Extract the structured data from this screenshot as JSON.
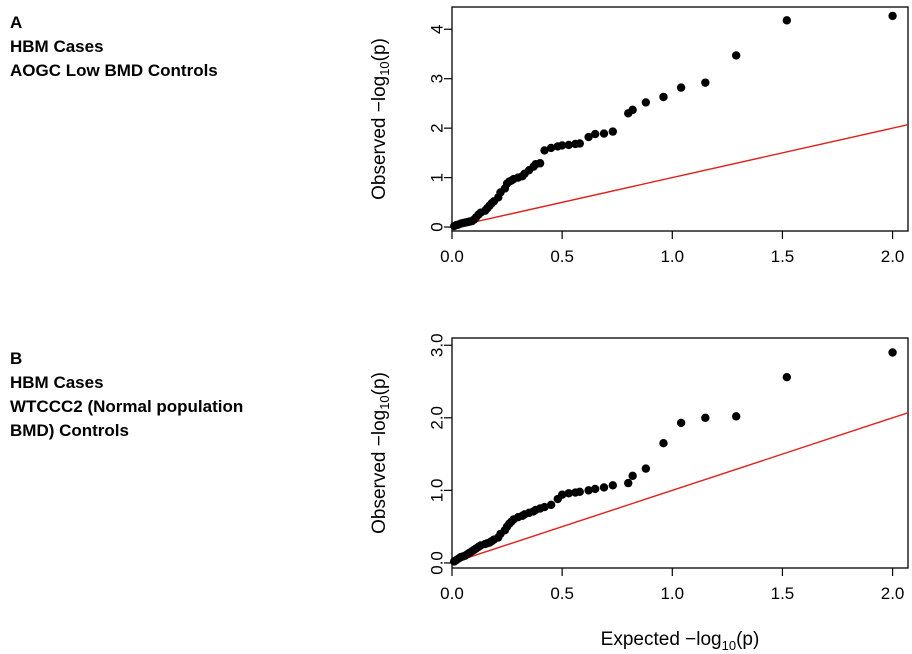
{
  "panels": [
    {
      "label_lines": [
        "A",
        "HBM Cases",
        "AOGC Low BMD Controls"
      ]
    },
    {
      "label_lines": [
        "B",
        "HBM Cases",
        "WTCCC2 (Normal population",
        "BMD) Controls"
      ]
    }
  ],
  "chart_data": [
    {
      "type": "scatter",
      "title": "",
      "xlabel": "",
      "ylabel_text": "Observed  −log",
      "ylabel_sub": "10",
      "ylabel_tail": "(p)",
      "xlim": [
        0,
        2.07
      ],
      "ylim": [
        -0.08,
        4.45
      ],
      "x_ticks": [
        0,
        0.5,
        1.0,
        1.5,
        2.0
      ],
      "x_tick_labels": [
        "0.0",
        "0.5",
        "1.0",
        "1.5",
        "2.0"
      ],
      "y_ticks": [
        0,
        1,
        2,
        3,
        4
      ],
      "y_tick_labels": [
        "0",
        "1",
        "2",
        "3",
        "4"
      ],
      "reference_line": {
        "color": "#e0201a",
        "from": [
          -0.05,
          -0.05
        ],
        "to": [
          2.07,
          2.07
        ]
      },
      "point_color": "#000000",
      "grid": false,
      "points": {
        "x": [
          0.01,
          0.02,
          0.03,
          0.04,
          0.05,
          0.06,
          0.07,
          0.08,
          0.09,
          0.1,
          0.11,
          0.12,
          0.13,
          0.15,
          0.16,
          0.17,
          0.18,
          0.19,
          0.21,
          0.22,
          0.24,
          0.25,
          0.26,
          0.27,
          0.28,
          0.3,
          0.32,
          0.33,
          0.35,
          0.37,
          0.38,
          0.4,
          0.42,
          0.45,
          0.48,
          0.5,
          0.53,
          0.56,
          0.58,
          0.62,
          0.65,
          0.69,
          0.73,
          0.8,
          0.82,
          0.88,
          0.96,
          1.04,
          1.15,
          1.29,
          1.52,
          2.0
        ],
        "y": [
          0.02,
          0.04,
          0.05,
          0.07,
          0.08,
          0.09,
          0.1,
          0.11,
          0.12,
          0.15,
          0.2,
          0.25,
          0.29,
          0.33,
          0.38,
          0.43,
          0.48,
          0.52,
          0.6,
          0.7,
          0.78,
          0.88,
          0.92,
          0.94,
          0.97,
          1.0,
          1.03,
          1.08,
          1.15,
          1.22,
          1.27,
          1.29,
          1.55,
          1.6,
          1.63,
          1.65,
          1.66,
          1.68,
          1.69,
          1.82,
          1.88,
          1.89,
          1.93,
          2.3,
          2.37,
          2.52,
          2.63,
          2.82,
          2.92,
          3.47,
          4.18,
          4.27
        ]
      }
    },
    {
      "type": "scatter",
      "title": "",
      "xlabel_text": "Expected  −log",
      "xlabel_sub": "10",
      "xlabel_tail": "(p)",
      "ylabel_text": "Observed  −log",
      "ylabel_sub": "10",
      "ylabel_tail": "(p)",
      "xlim": [
        0,
        2.07
      ],
      "ylim": [
        -0.07,
        3.1
      ],
      "x_ticks": [
        0,
        0.5,
        1.0,
        1.5,
        2.0
      ],
      "x_tick_labels": [
        "0.0",
        "0.5",
        "1.0",
        "1.5",
        "2.0"
      ],
      "y_ticks": [
        0,
        1,
        2,
        3
      ],
      "y_tick_labels": [
        "0.0",
        "1.0",
        "2.0",
        "3.0"
      ],
      "reference_line": {
        "color": "#e0201a",
        "from": [
          -0.05,
          -0.05
        ],
        "to": [
          2.07,
          2.07
        ]
      },
      "point_color": "#000000",
      "grid": false,
      "points": {
        "x": [
          0.01,
          0.02,
          0.03,
          0.04,
          0.05,
          0.06,
          0.07,
          0.08,
          0.09,
          0.1,
          0.11,
          0.12,
          0.13,
          0.15,
          0.16,
          0.17,
          0.18,
          0.19,
          0.21,
          0.22,
          0.24,
          0.25,
          0.26,
          0.27,
          0.28,
          0.3,
          0.32,
          0.33,
          0.35,
          0.37,
          0.38,
          0.4,
          0.42,
          0.45,
          0.48,
          0.5,
          0.53,
          0.56,
          0.58,
          0.62,
          0.65,
          0.69,
          0.73,
          0.8,
          0.82,
          0.88,
          0.96,
          1.04,
          1.15,
          1.29,
          1.52,
          2.0
        ],
        "y": [
          0.02,
          0.04,
          0.06,
          0.08,
          0.09,
          0.1,
          0.12,
          0.14,
          0.16,
          0.18,
          0.2,
          0.22,
          0.24,
          0.26,
          0.27,
          0.28,
          0.3,
          0.32,
          0.35,
          0.4,
          0.45,
          0.5,
          0.54,
          0.57,
          0.6,
          0.63,
          0.65,
          0.67,
          0.69,
          0.71,
          0.73,
          0.75,
          0.77,
          0.8,
          0.88,
          0.94,
          0.96,
          0.97,
          0.98,
          1.0,
          1.02,
          1.04,
          1.07,
          1.1,
          1.2,
          1.3,
          1.65,
          1.93,
          2.0,
          2.02,
          2.56,
          2.9
        ]
      }
    }
  ]
}
